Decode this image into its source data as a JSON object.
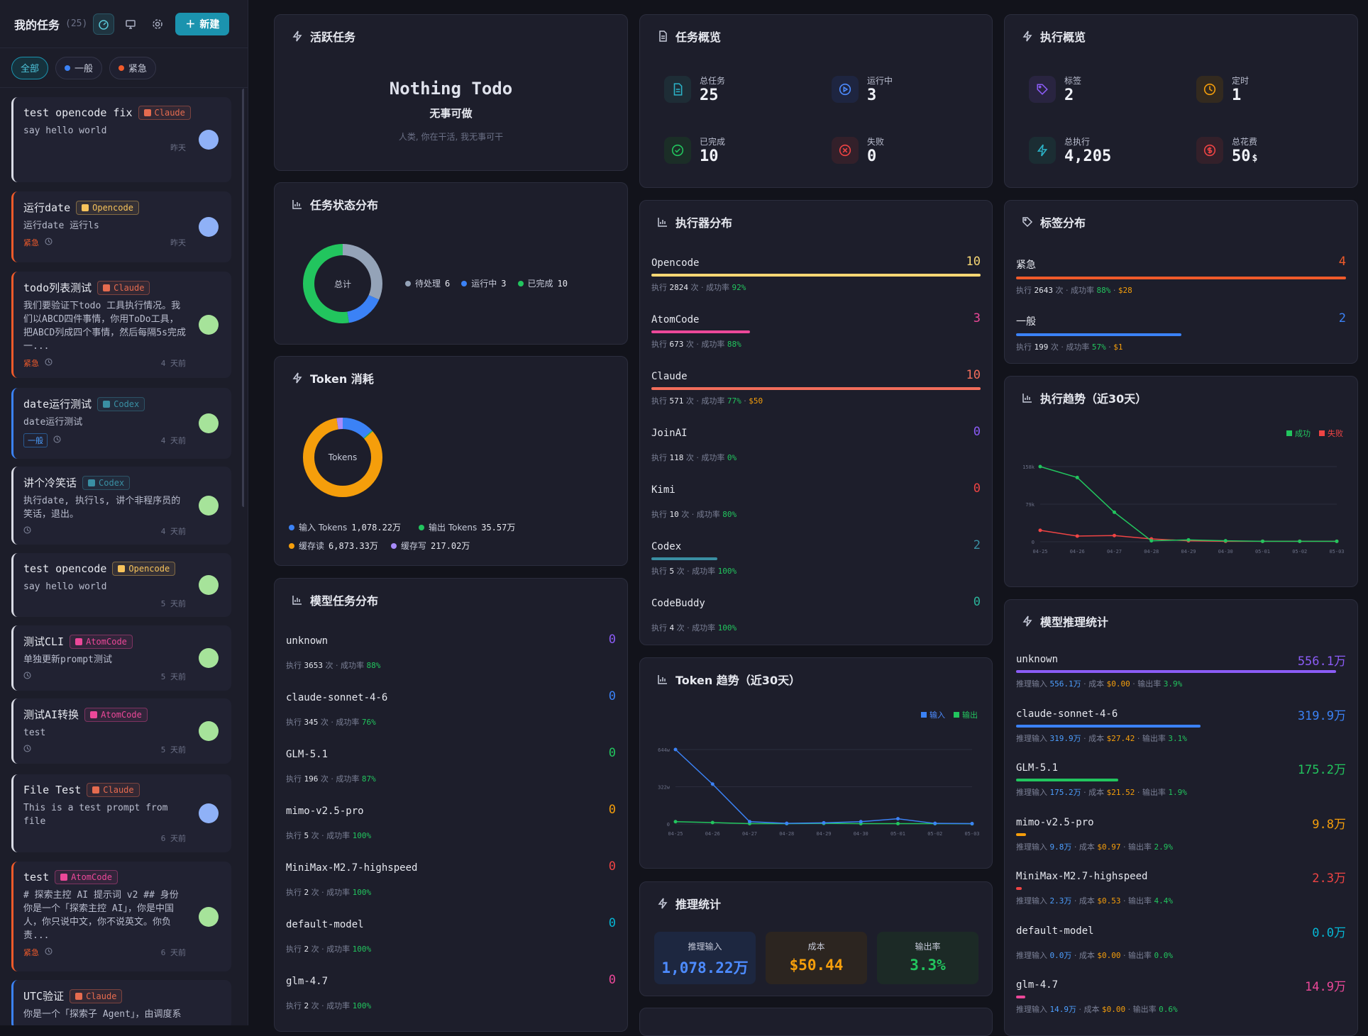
{
  "sidebar": {
    "title": "我的任务",
    "count": "(25)",
    "new_label": "新建",
    "filters": [
      {
        "label": "全部",
        "active": true
      },
      {
        "label": "一般",
        "color": "#3b82f6"
      },
      {
        "label": "紧急",
        "color": "#f05a2a"
      }
    ],
    "tasks": [
      {
        "title": "test opencode fix",
        "tag": "Claude",
        "desc": "say hello world",
        "time": "昨天"
      },
      {
        "title": "运行date",
        "tag": "Opencode",
        "desc": "运行date 运行ls",
        "badge": "紧急",
        "time": "昨天"
      },
      {
        "title": "todo列表测试",
        "tag": "Claude",
        "desc": "我们要验证下todo 工具执行情况。我们以ABCD四件事情，你用ToDo工具，把ABCD列成四个事情，然后每隔5s完成一...",
        "badge": "紧急",
        "time": "4 天前"
      },
      {
        "title": "date运行测试",
        "tag": "Codex",
        "desc": "date运行测试",
        "badge": "一般",
        "time": "4 天前"
      },
      {
        "title": "讲个冷笑话",
        "tag": "Codex",
        "desc": "执行date, 执行ls, 讲个非程序员的笑话，退出。",
        "time": "4 天前"
      },
      {
        "title": "test opencode",
        "tag": "Opencode",
        "desc": "say hello world",
        "time": "5 天前"
      },
      {
        "title": "测试CLI",
        "tag": "AtomCode",
        "desc": "单独更新prompt测试",
        "time": "5 天前"
      },
      {
        "title": "测试AI转换",
        "tag": "AtomCode",
        "desc": "test",
        "time": "5 天前"
      },
      {
        "title": "File Test",
        "tag": "Claude",
        "desc": "This is a test prompt from file",
        "time": "6 天前"
      },
      {
        "title": "test",
        "tag": "AtomCode",
        "desc": "# 探索主控 AI 提示词 v2 ## 身份 你是一个「探索主控 AI」，你是中国人，你只说中文，你不说英文。你负责...",
        "badge": "紧急",
        "time": "6 天前"
      },
      {
        "title": "UTC验证",
        "tag": "Claude",
        "desc": "你是一个「探索子 Agent」，由调度系",
        "time": ""
      }
    ]
  },
  "active": {
    "title": "活跃任务",
    "heading": "Nothing Todo",
    "sub": "无事可做",
    "note": "人类, 你在干活, 我无事可干"
  },
  "overview": {
    "title": "任务概览",
    "items": [
      {
        "label": "总任务",
        "value": "25"
      },
      {
        "label": "运行中",
        "value": "3"
      },
      {
        "label": "已完成",
        "value": "10"
      },
      {
        "label": "失败",
        "value": "0"
      }
    ]
  },
  "exec_overview": {
    "title": "执行概览",
    "items": [
      {
        "label": "标签",
        "value": "2"
      },
      {
        "label": "定时",
        "value": "1"
      },
      {
        "label": "总执行",
        "value": "4,205"
      },
      {
        "label": "总花费",
        "value": "50",
        "unit": "$"
      }
    ]
  },
  "status_dist": {
    "title": "任务状态分布",
    "center": "总计",
    "legend": [
      {
        "label": "待处理",
        "value": 6,
        "color": "#94a3b8"
      },
      {
        "label": "运行中",
        "value": 3,
        "color": "#3b82f6"
      },
      {
        "label": "已完成",
        "value": 10,
        "color": "#22c55e"
      }
    ]
  },
  "token": {
    "title": "Token 消耗",
    "center": "Tokens",
    "legend": [
      {
        "label": "输入 Tokens",
        "value": "1,078.22万",
        "num": 1078.22,
        "color": "#3b82f6"
      },
      {
        "label": "输出 Tokens",
        "value": "35.57万",
        "num": 35.57,
        "color": "#22c55e"
      },
      {
        "label": "缓存读",
        "value": "6,873.33万",
        "num": 6873.33,
        "color": "#f59e0b"
      },
      {
        "label": "缓存写",
        "value": "217.02万",
        "num": 217.02,
        "color": "#a78bfa"
      }
    ]
  },
  "executors": {
    "title": "执行器分布",
    "exec_word": "执行",
    "times_word": "次",
    "rate_word": "成功率",
    "rows": [
      {
        "name": "Opencode",
        "count": "10",
        "runs": "2824",
        "rate": "92%",
        "cost": "",
        "color": "#f7d774",
        "frac": 1.0
      },
      {
        "name": "AtomCode",
        "count": "3",
        "runs": "673",
        "rate": "88%",
        "cost": "",
        "color": "#ec4899",
        "frac": 0.3
      },
      {
        "name": "Claude",
        "count": "10",
        "runs": "571",
        "rate": "77%",
        "cost": "$50",
        "color": "#f26d5b",
        "frac": 1.0
      },
      {
        "name": "JoinAI",
        "count": "0",
        "runs": "118",
        "rate": "0%",
        "cost": "",
        "color": "#8b5cf6",
        "frac": 0
      },
      {
        "name": "Kimi",
        "count": "0",
        "runs": "10",
        "rate": "80%",
        "cost": "",
        "color": "#ef4444",
        "frac": 0
      },
      {
        "name": "Codex",
        "count": "2",
        "runs": "5",
        "rate": "100%",
        "cost": "",
        "color": "#3a8fa3",
        "frac": 0.2
      },
      {
        "name": "CodeBuddy",
        "count": "0",
        "runs": "4",
        "rate": "100%",
        "cost": "",
        "color": "#2bb39a",
        "frac": 0
      }
    ]
  },
  "models": {
    "title": "模型任务分布",
    "rows": [
      {
        "name": "unknown",
        "count": "0",
        "runs": "3653",
        "rate": "88%",
        "color": "#8b5cf6"
      },
      {
        "name": "claude-sonnet-4-6",
        "count": "0",
        "runs": "345",
        "rate": "76%",
        "color": "#3b82f6"
      },
      {
        "name": "GLM-5.1",
        "count": "0",
        "runs": "196",
        "rate": "87%",
        "color": "#22c55e"
      },
      {
        "name": "mimo-v2.5-pro",
        "count": "0",
        "runs": "5",
        "rate": "100%",
        "color": "#f59e0b"
      },
      {
        "name": "MiniMax-M2.7-highspeed",
        "count": "0",
        "runs": "2",
        "rate": "100%",
        "color": "#ef4444"
      },
      {
        "name": "default-model",
        "count": "0",
        "runs": "2",
        "rate": "100%",
        "color": "#06b6d4"
      },
      {
        "name": "glm-4.7",
        "count": "0",
        "runs": "2",
        "rate": "100%",
        "color": "#ec4899"
      }
    ]
  },
  "tags_dist": {
    "title": "标签分布",
    "rows": [
      {
        "name": "紧急",
        "count": "4",
        "runs": "2643",
        "rate": "88%",
        "cost": "$28",
        "color": "#f05a2a",
        "frac": 1.0
      },
      {
        "name": "一般",
        "count": "2",
        "runs": "199",
        "rate": "57%",
        "cost": "$1",
        "color": "#3b82f6",
        "frac": 0.5
      }
    ]
  },
  "exec_trend": {
    "title": "执行趋势（近30天）",
    "legend_success": "成功",
    "legend_fail": "失败"
  },
  "token_trend": {
    "title": "Token 趋势（近30天）",
    "legend_in": "输入",
    "legend_out": "输出"
  },
  "infer_models": {
    "title": "模型推理统计",
    "in_word": "推理输入",
    "cost_word": "成本",
    "rate_word": "输出率",
    "rows": [
      {
        "name": "unknown",
        "value": "556.1万",
        "input": "556.1万",
        "cost": "$0.00",
        "rate": "3.9%",
        "color": "#8b5cf6",
        "frac": 0.97
      },
      {
        "name": "claude-sonnet-4-6",
        "value": "319.9万",
        "input": "319.9万",
        "cost": "$27.42",
        "rate": "3.1%",
        "color": "#3b82f6",
        "frac": 0.56
      },
      {
        "name": "GLM-5.1",
        "value": "175.2万",
        "input": "175.2万",
        "cost": "$21.52",
        "rate": "1.9%",
        "color": "#22c55e",
        "frac": 0.31
      },
      {
        "name": "mimo-v2.5-pro",
        "value": "9.8万",
        "input": "9.8万",
        "cost": "$0.97",
        "rate": "2.9%",
        "color": "#f59e0b",
        "frac": 0.018
      },
      {
        "name": "MiniMax-M2.7-highspeed",
        "value": "2.3万",
        "input": "2.3万",
        "cost": "$0.53",
        "rate": "4.4%",
        "color": "#ef4444",
        "frac": 0.006
      },
      {
        "name": "default-model",
        "value": "0.0万",
        "input": "0.0万",
        "cost": "$0.00",
        "rate": "0.0%",
        "color": "#06b6d4",
        "frac": 0
      },
      {
        "name": "glm-4.7",
        "value": "14.9万",
        "input": "14.9万",
        "cost": "$0.00",
        "rate": "0.6%",
        "color": "#ec4899",
        "frac": 0.027
      }
    ]
  },
  "inference": {
    "title": "推理统计",
    "items": [
      {
        "label": "推理输入",
        "value": "1,078.22万",
        "color": "#4d8bff"
      },
      {
        "label": "成本",
        "value": "$50.44",
        "color": "#f59e0b"
      },
      {
        "label": "输出率",
        "value": "3.3%",
        "color": "#22c55e"
      }
    ]
  },
  "chart_data": [
    {
      "type": "line",
      "title": "执行趋势（近30天）",
      "x": [
        "04-25",
        "04-26",
        "04-27",
        "04-28",
        "04-29",
        "04-30",
        "05-01",
        "05-02",
        "05-03"
      ],
      "y_ticks": [
        "158k",
        "79k",
        "0"
      ],
      "ylim": [
        0,
        158
      ],
      "series": [
        {
          "name": "成功",
          "color": "#22c55e",
          "values": [
            158,
            135,
            62,
            2,
            4,
            2,
            1,
            1,
            1
          ]
        },
        {
          "name": "失败",
          "color": "#ef4444",
          "values": [
            24,
            12,
            13,
            6,
            2,
            1,
            1,
            1,
            1
          ]
        }
      ]
    },
    {
      "type": "line",
      "title": "Token 趋势（近30天）",
      "x": [
        "04-25",
        "04-26",
        "04-27",
        "04-28",
        "04-29",
        "04-30",
        "05-01",
        "05-02",
        "05-03"
      ],
      "y_ticks": [
        "644w",
        "322w",
        "0"
      ],
      "ylim": [
        0,
        644
      ],
      "series": [
        {
          "name": "输入",
          "color": "#3b82f6",
          "values": [
            644,
            345,
            20,
            5,
            10,
            20,
            45,
            5,
            3
          ]
        },
        {
          "name": "输出",
          "color": "#22c55e",
          "values": [
            20,
            12,
            3,
            3,
            5,
            3,
            3,
            3,
            2
          ]
        }
      ]
    }
  ]
}
